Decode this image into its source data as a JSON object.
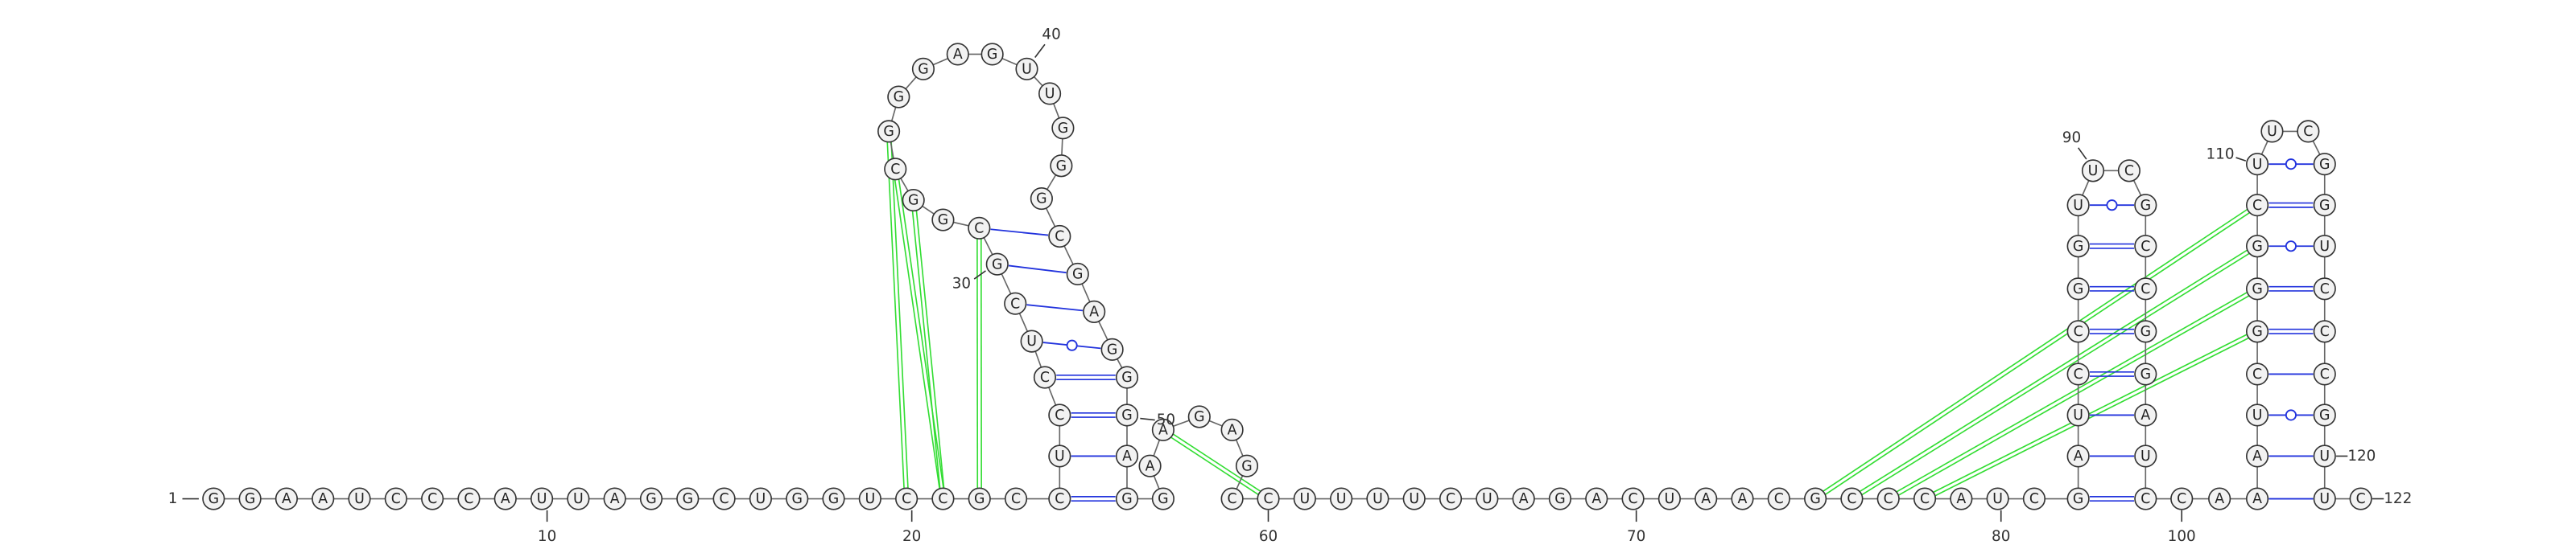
{
  "nucleotides": [
    "G",
    "G",
    "A",
    "A",
    "U",
    "C",
    "C",
    "C",
    "A",
    "U",
    "U",
    "A",
    "G",
    "G",
    "C",
    "U",
    "G",
    "G",
    "U",
    "C",
    "C",
    "G",
    "C",
    "C",
    "U",
    "C",
    "C",
    "U",
    "C",
    "G",
    "C",
    "G",
    "G",
    "C",
    "G",
    "G",
    "G",
    "A",
    "G",
    "U",
    "U",
    "G",
    "G",
    "G",
    "C",
    "G",
    "A",
    "G",
    "G",
    "G",
    "A",
    "G",
    "G",
    "A",
    "A",
    "G",
    "A",
    "G",
    "C",
    "C",
    "U",
    "U",
    "U",
    "U",
    "C",
    "U",
    "A",
    "G",
    "A",
    "C",
    "U",
    "A",
    "A",
    "C",
    "G",
    "C",
    "C",
    "C",
    "A",
    "U",
    "C",
    "G",
    "A",
    "U",
    "C",
    "C",
    "G",
    "G",
    "U",
    "U",
    "C",
    "G",
    "C",
    "C",
    "G",
    "G",
    "A",
    "U",
    "C",
    "C",
    "A",
    "A",
    "A",
    "U",
    "C",
    "G",
    "G",
    "G",
    "C",
    "U",
    "U",
    "C",
    "G",
    "G",
    "U",
    "C",
    "C",
    "C",
    "G",
    "U",
    "U",
    "C"
  ],
  "position_labels": [
    "1",
    "10",
    "20",
    "30",
    "40",
    "50",
    "60",
    "70",
    "80",
    "90",
    "100",
    "110",
    "120",
    "122"
  ]
}
